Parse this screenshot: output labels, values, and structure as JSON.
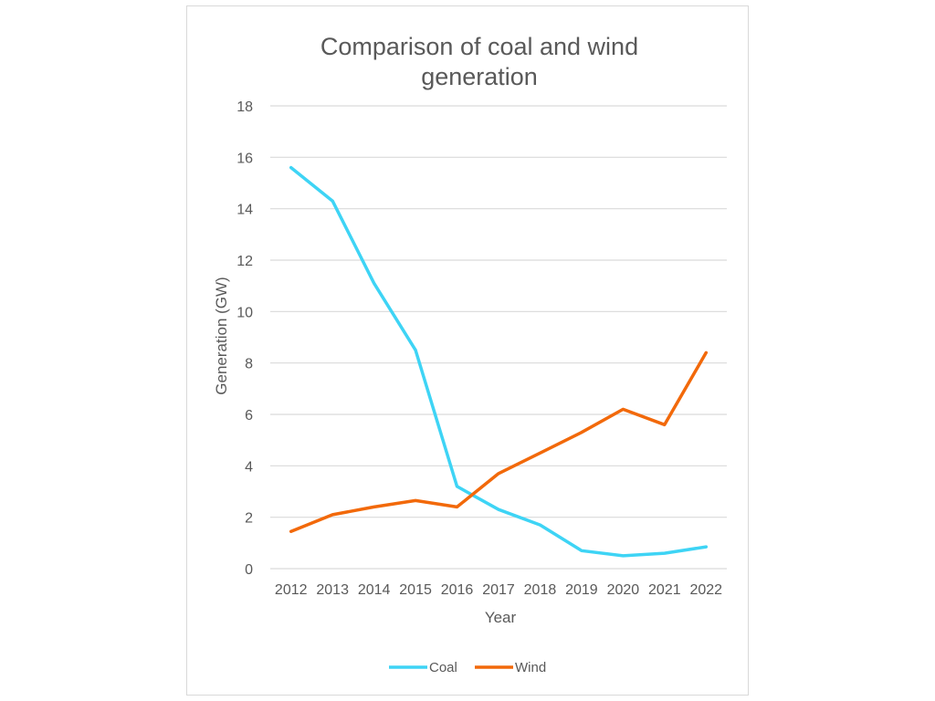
{
  "chart_data": {
    "type": "line",
    "title_lines": [
      "Comparison of coal and wind",
      "generation"
    ],
    "xlabel": "Year",
    "ylabel": "Generation (GW)",
    "categories": [
      "2012",
      "2013",
      "2014",
      "2015",
      "2016",
      "2017",
      "2018",
      "2019",
      "2020",
      "2021",
      "2022"
    ],
    "ylim": [
      0,
      18
    ],
    "yticks": [
      "0",
      "2",
      "4",
      "6",
      "8",
      "10",
      "12",
      "14",
      "16",
      "18"
    ],
    "grid": true,
    "legend_position": "bottom",
    "series": [
      {
        "name": "Coal",
        "color": "#3ed4f5",
        "values": [
          15.6,
          14.3,
          11.1,
          8.5,
          3.2,
          2.3,
          1.7,
          0.7,
          0.5,
          0.6,
          0.85
        ]
      },
      {
        "name": "Wind",
        "color": "#f2690a",
        "values": [
          1.45,
          2.1,
          2.4,
          2.65,
          2.4,
          3.7,
          4.5,
          5.3,
          6.2,
          5.6,
          8.4
        ]
      }
    ]
  }
}
